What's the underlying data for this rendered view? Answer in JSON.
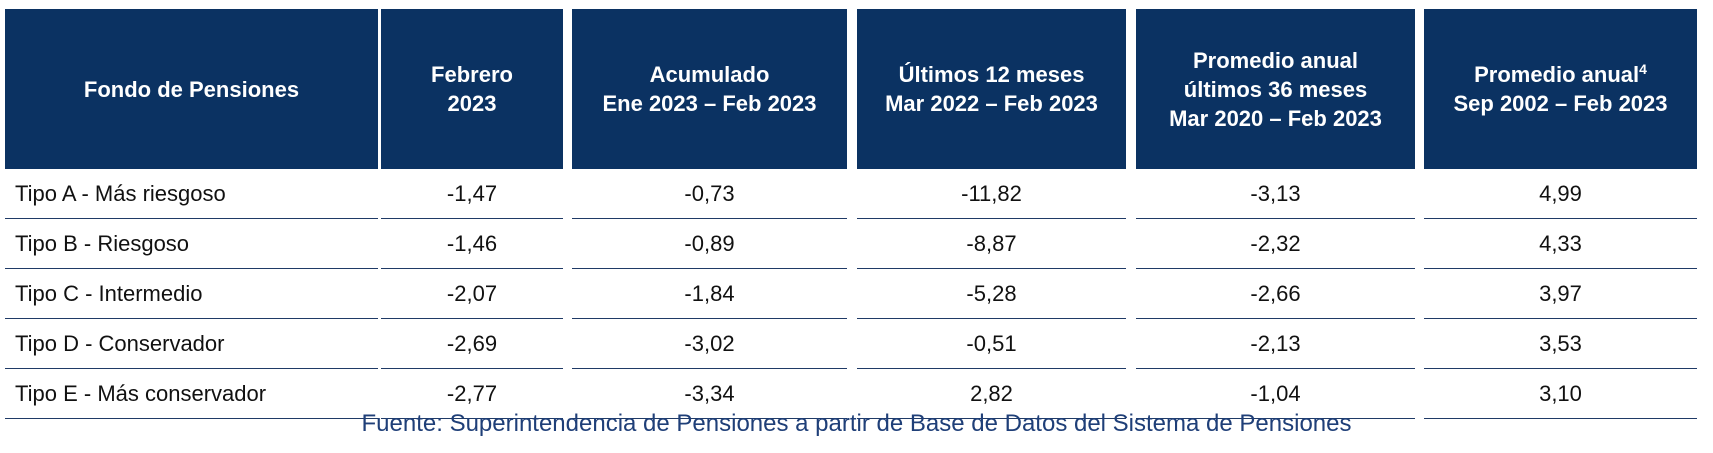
{
  "table": {
    "columns": [
      {
        "lines": [
          "Fondo de Pensiones"
        ]
      },
      {
        "lines": [
          "Febrero",
          "2023"
        ]
      },
      {
        "lines": [
          "Acumulado",
          "Ene 2023 – Feb 2023"
        ]
      },
      {
        "lines": [
          "Últimos 12 meses",
          "Mar 2022 – Feb 2023"
        ]
      },
      {
        "lines": [
          "Promedio anual",
          "últimos 36 meses",
          "Mar 2020 – Feb 2023"
        ]
      },
      {
        "lines": [
          "Promedio anual",
          "Sep 2002 – Feb 2023"
        ],
        "superscript": "4"
      }
    ],
    "rows": [
      [
        "Tipo A - Más riesgoso",
        "-1,47",
        "-0,73",
        "-11,82",
        "-3,13",
        "4,99"
      ],
      [
        "Tipo B - Riesgoso",
        "-1,46",
        "-0,89",
        "-8,87",
        "-2,32",
        "4,33"
      ],
      [
        "Tipo C - Intermedio",
        "-2,07",
        "-1,84",
        "-5,28",
        "-2,66",
        "3,97"
      ],
      [
        "Tipo D - Conservador",
        "-2,69",
        "-3,02",
        "-0,51",
        "-2,13",
        "3,53"
      ],
      [
        "Tipo E - Más conservador",
        "-2,77",
        "-3,34",
        "2,82",
        "-1,04",
        "3,10"
      ]
    ],
    "source": "Fuente: Superintendencia de Pensiones a partir de Base de Datos del Sistema de Pensiones"
  }
}
